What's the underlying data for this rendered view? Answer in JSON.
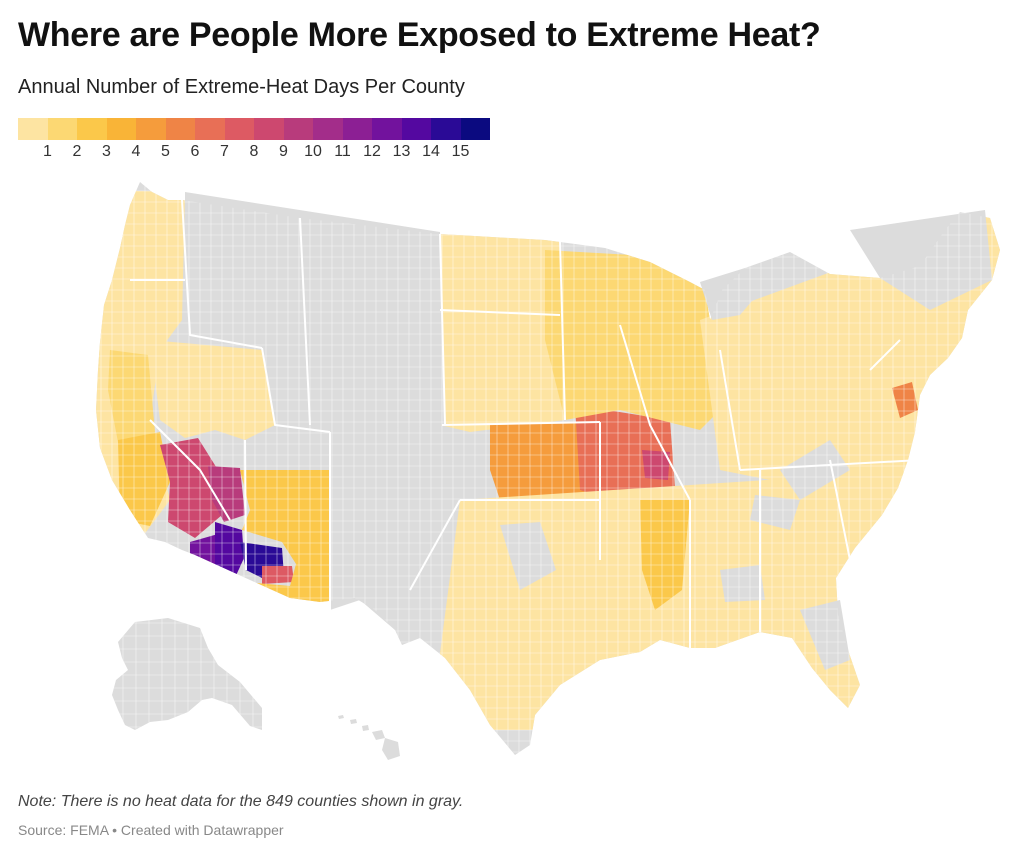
{
  "title": "Where are People More Exposed to Extreme Heat?",
  "subtitle": "Annual Number of Extreme-Heat Days Per County",
  "legend": {
    "labels": [
      "1",
      "2",
      "3",
      "4",
      "5",
      "6",
      "7",
      "8",
      "9",
      "10",
      "11",
      "12",
      "13",
      "14",
      "15"
    ],
    "colors": [
      "#fde4a2",
      "#fcd873",
      "#fbc84a",
      "#f9b437",
      "#f59c3c",
      "#ef8446",
      "#e86f56",
      "#dd5a63",
      "#cd486f",
      "#b83b7c",
      "#a32d8a",
      "#8c1f94",
      "#72129d",
      "#5408a0",
      "#2a0a96",
      "#0b0a80"
    ],
    "gray_color": "#dcdcdc",
    "border_color": "#ffffff"
  },
  "map_data": {
    "regions": [
      {
        "name": "west-coast",
        "value": 1
      },
      {
        "name": "great-basin",
        "value": 1
      },
      {
        "name": "central-valley",
        "value": 2
      },
      {
        "name": "socal-coast",
        "value": 3
      },
      {
        "name": "mojave-desert",
        "value": 9
      },
      {
        "name": "imperial-valley",
        "value": 13
      },
      {
        "name": "western-arizona",
        "value": 14
      },
      {
        "name": "maricopa",
        "value": 15
      },
      {
        "name": "pinal",
        "value": 8
      },
      {
        "name": "clark-county",
        "value": 10
      },
      {
        "name": "southern-arizona",
        "value": 3
      },
      {
        "name": "great-plains",
        "value": 1
      },
      {
        "name": "kansas-heat-core",
        "value": 5
      },
      {
        "name": "oklahoma-heat-core",
        "value": 9
      },
      {
        "name": "missouri-heat",
        "value": 7
      },
      {
        "name": "st-louis",
        "value": 9
      },
      {
        "name": "corn-belt",
        "value": 2
      },
      {
        "name": "southeast",
        "value": 1
      },
      {
        "name": "mississippi-delta",
        "value": 3
      },
      {
        "name": "east-coast",
        "value": 1
      },
      {
        "name": "philadelphia",
        "value": 6
      }
    ],
    "no_data_counties": 849
  },
  "note": "Note: There is no heat data for the 849 counties shown in gray.",
  "source": "Source: FEMA • Created with Datawrapper"
}
